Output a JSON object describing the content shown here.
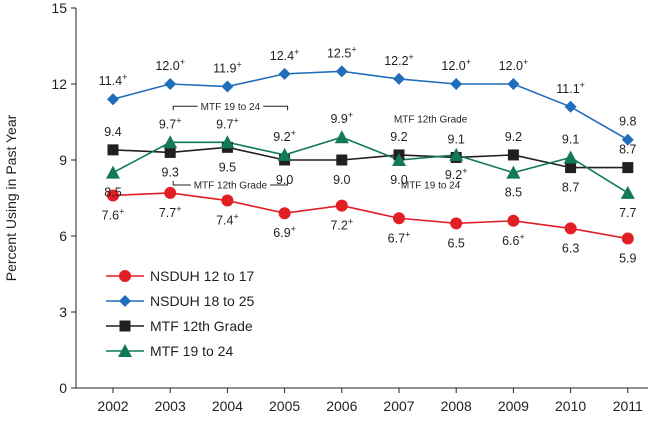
{
  "chart_data": {
    "type": "line",
    "title": "",
    "xlabel": "",
    "ylabel": "Percent Using in Past Year",
    "ylim": [
      0,
      15
    ],
    "yticks": [
      0,
      3,
      6,
      9,
      12,
      15
    ],
    "grid": false,
    "legend_position": "bottom-left",
    "x": [
      "2002",
      "2003",
      "2004",
      "2005",
      "2006",
      "2007",
      "2008",
      "2009",
      "2010",
      "2011"
    ],
    "series": [
      {
        "name": "NSDUH 12 to 17",
        "color": "#e31f26",
        "marker": "circle",
        "values": [
          7.6,
          7.7,
          7.4,
          6.9,
          7.2,
          6.7,
          6.5,
          6.6,
          6.3,
          5.9
        ],
        "labels": [
          "7.6",
          "7.7",
          "7.4",
          "6.9",
          "7.2",
          "6.7",
          "6.5",
          "6.6",
          "6.3",
          "5.9"
        ],
        "plus": [
          true,
          true,
          true,
          true,
          true,
          true,
          false,
          true,
          false,
          false
        ],
        "label_pos": [
          "below",
          "below",
          "below",
          "below",
          "below",
          "below",
          "below",
          "below",
          "below",
          "below"
        ]
      },
      {
        "name": "NSDUH 18 to 25",
        "color": "#1f6dbb",
        "marker": "diamond",
        "values": [
          11.4,
          12.0,
          11.9,
          12.4,
          12.5,
          12.2,
          12.0,
          12.0,
          11.1,
          9.8
        ],
        "labels": [
          "11.4",
          "12.0",
          "11.9",
          "12.4",
          "12.5",
          "12.2",
          "12.0",
          "12.0",
          "11.1",
          "9.8"
        ],
        "plus": [
          true,
          true,
          true,
          true,
          true,
          true,
          true,
          true,
          true,
          false
        ],
        "label_pos": [
          "above",
          "above",
          "above",
          "above",
          "above",
          "above",
          "above",
          "above",
          "above",
          "above"
        ]
      },
      {
        "name": "MTF 12th Grade",
        "color": "#231f20",
        "marker": "square",
        "values": [
          9.4,
          9.3,
          9.5,
          9.0,
          9.0,
          9.2,
          9.1,
          9.2,
          8.7,
          8.7
        ],
        "labels": [
          "9.4",
          "9.3",
          "9.5",
          "9.0",
          "9.0",
          "9.2",
          "9.1",
          "9.2",
          "8.7",
          "8.7"
        ],
        "plus": [
          false,
          false,
          false,
          false,
          false,
          false,
          false,
          false,
          false,
          false
        ],
        "label_pos": [
          "above",
          "below",
          "below",
          "below",
          "below",
          "above",
          "above",
          "above",
          "below",
          "above"
        ]
      },
      {
        "name": "MTF 19 to 24",
        "color": "#127a55",
        "marker": "triangle",
        "values": [
          8.5,
          9.7,
          9.7,
          9.2,
          9.9,
          9.0,
          9.2,
          8.5,
          9.1,
          7.7
        ],
        "labels": [
          "8.5",
          "9.7",
          "9.7",
          "9.2",
          "9.9",
          "9.0",
          "9.2",
          "8.5",
          "9.1",
          "7.7"
        ],
        "plus": [
          false,
          true,
          true,
          true,
          true,
          false,
          true,
          false,
          false,
          false
        ],
        "label_pos": [
          "below",
          "above",
          "above",
          "above",
          "above",
          "below",
          "below",
          "below",
          "above",
          "below"
        ]
      }
    ],
    "annotations": [
      {
        "text": "MTF 19 to 24",
        "series": "MTF 19 to 24",
        "from": "2003",
        "to": "2005",
        "side": "above"
      },
      {
        "text": "MTF 12th Grade",
        "series": "MTF 12th Grade",
        "from": "2003",
        "to": "2005",
        "side": "below"
      },
      {
        "text": "MTF 12th Grade",
        "series": "MTF 12th Grade",
        "from": "2007",
        "to": "2008",
        "side": "above"
      },
      {
        "text": "MTF 19 to 24",
        "series": "MTF 19 to 24",
        "from": "2007",
        "to": "2008",
        "side": "below"
      }
    ],
    "plus_symbol": "+"
  }
}
